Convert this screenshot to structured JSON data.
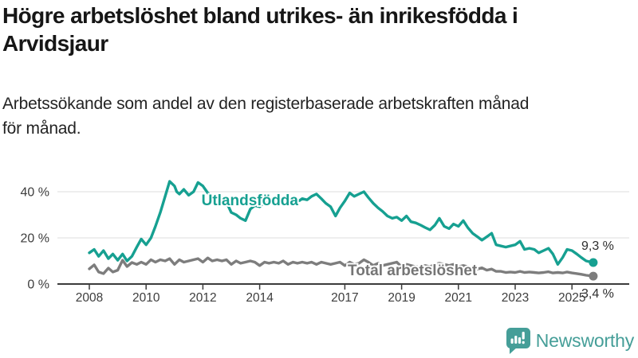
{
  "header": {
    "title_lines": [
      "Högre arbetslöshet bland utrikes- än inrikesfödda i",
      "Arvidsjaur"
    ],
    "subtitle_lines": [
      "Arbetssökande som andel av den registerbaserade arbetskraften månad",
      "för månad."
    ]
  },
  "footer": {
    "brand": "Newsworthy"
  },
  "colors": {
    "teal_line": "#16a091",
    "gray_line": "#7d7d7d",
    "gray_label": "#757575",
    "axis": "#3b3b3b",
    "grid": "#dcdcdc",
    "tick_text": "#3d3d3d",
    "end_label_text": "#2e2e2e",
    "brand_teal": "#459e98"
  },
  "chart_data": {
    "type": "line",
    "title": "Högre arbetslöshet bland utrikes- än inrikesfödda i Arvidsjaur",
    "subtitle": "Arbetssökande som andel av den registerbaserade arbetskraften månad för månad.",
    "x_unit": "year (decimal, monthly data)",
    "y_unit": "%",
    "grid": "horizontal",
    "legend_position": "inline-labels",
    "x_axis": {
      "range": [
        2007.8,
        2026.0
      ],
      "ticks": [
        2008,
        2010,
        2012,
        2014,
        2017,
        2019,
        2021,
        2023,
        2025
      ]
    },
    "y_axis": {
      "range": [
        0,
        47
      ],
      "ticks": [
        {
          "value": 0,
          "label": "0 %"
        },
        {
          "value": 20,
          "label": "20 %"
        },
        {
          "value": 40,
          "label": "40 %"
        }
      ]
    },
    "series": [
      {
        "id": "utlandsfodda",
        "name": "Utlandsfödda",
        "color": "#16a091",
        "label_color": "#16a091",
        "end_label": "9,3 %",
        "end_value": 9.3,
        "label_pos": {
          "x": 2011.95,
          "y": 34.2
        },
        "points": [
          [
            2008.0,
            13.5
          ],
          [
            2008.17,
            15
          ],
          [
            2008.33,
            12
          ],
          [
            2008.5,
            14.5
          ],
          [
            2008.67,
            11
          ],
          [
            2008.83,
            13
          ],
          [
            2009.0,
            10.3
          ],
          [
            2009.17,
            13
          ],
          [
            2009.33,
            10
          ],
          [
            2009.5,
            12
          ],
          [
            2009.67,
            16
          ],
          [
            2009.83,
            19.5
          ],
          [
            2010.0,
            17
          ],
          [
            2010.17,
            20
          ],
          [
            2010.33,
            25
          ],
          [
            2010.5,
            31
          ],
          [
            2010.67,
            38
          ],
          [
            2010.83,
            44.5
          ],
          [
            2011.0,
            42.5
          ],
          [
            2011.08,
            40
          ],
          [
            2011.17,
            39
          ],
          [
            2011.33,
            41
          ],
          [
            2011.5,
            38.5
          ],
          [
            2011.67,
            40
          ],
          [
            2011.83,
            44
          ],
          [
            2012.0,
            42.5
          ],
          [
            2012.17,
            39.5
          ],
          [
            2012.33,
            38
          ],
          [
            2012.5,
            36.5
          ],
          [
            2012.67,
            37.5
          ],
          [
            2012.83,
            35.5
          ],
          [
            2013.0,
            31
          ],
          [
            2013.17,
            30
          ],
          [
            2013.33,
            28.5
          ],
          [
            2013.5,
            27.5
          ],
          [
            2013.67,
            32.5
          ],
          [
            2013.83,
            34
          ],
          [
            2014.0,
            33.5
          ],
          [
            2014.17,
            35.5
          ],
          [
            2014.33,
            34.5
          ],
          [
            2014.5,
            36
          ],
          [
            2014.67,
            35
          ],
          [
            2014.83,
            36.5
          ],
          [
            2015.0,
            35
          ],
          [
            2015.17,
            36.5
          ],
          [
            2015.33,
            35.5
          ],
          [
            2015.5,
            37
          ],
          [
            2015.67,
            36.5
          ],
          [
            2015.83,
            38
          ],
          [
            2016.0,
            39
          ],
          [
            2016.17,
            37
          ],
          [
            2016.33,
            35
          ],
          [
            2016.5,
            33.5
          ],
          [
            2016.67,
            29.5
          ],
          [
            2016.83,
            33
          ],
          [
            2017.0,
            36
          ],
          [
            2017.17,
            39.5
          ],
          [
            2017.33,
            38
          ],
          [
            2017.5,
            39
          ],
          [
            2017.67,
            40
          ],
          [
            2017.83,
            37.5
          ],
          [
            2018.0,
            35
          ],
          [
            2018.17,
            33
          ],
          [
            2018.33,
            31.5
          ],
          [
            2018.5,
            29.5
          ],
          [
            2018.67,
            28.5
          ],
          [
            2018.83,
            29
          ],
          [
            2019.0,
            27.5
          ],
          [
            2019.17,
            29.5
          ],
          [
            2019.33,
            27
          ],
          [
            2019.5,
            26.5
          ],
          [
            2019.67,
            25.5
          ],
          [
            2019.83,
            24.5
          ],
          [
            2020.0,
            23.5
          ],
          [
            2020.17,
            25.5
          ],
          [
            2020.33,
            28.5
          ],
          [
            2020.5,
            25
          ],
          [
            2020.67,
            24
          ],
          [
            2020.83,
            26
          ],
          [
            2021.0,
            25
          ],
          [
            2021.17,
            27.5
          ],
          [
            2021.33,
            24.5
          ],
          [
            2021.5,
            22
          ],
          [
            2021.67,
            20.5
          ],
          [
            2021.83,
            19
          ],
          [
            2022.0,
            20.5
          ],
          [
            2022.17,
            22
          ],
          [
            2022.33,
            17
          ],
          [
            2022.5,
            16.5
          ],
          [
            2022.67,
            16
          ],
          [
            2022.83,
            16.5
          ],
          [
            2023.0,
            17
          ],
          [
            2023.17,
            18.5
          ],
          [
            2023.33,
            15
          ],
          [
            2023.5,
            15.5
          ],
          [
            2023.67,
            15
          ],
          [
            2023.83,
            13.5
          ],
          [
            2024.0,
            14.5
          ],
          [
            2024.17,
            15.5
          ],
          [
            2024.33,
            13
          ],
          [
            2024.5,
            8.5
          ],
          [
            2024.67,
            11.5
          ],
          [
            2024.83,
            15
          ],
          [
            2025.0,
            14.5
          ],
          [
            2025.17,
            13
          ],
          [
            2025.33,
            11.5
          ],
          [
            2025.5,
            10
          ],
          [
            2025.75,
            9.3
          ]
        ]
      },
      {
        "id": "total-arbetsloshet",
        "name": "Total arbetslöshet",
        "color": "#7d7d7d",
        "label_color": "#757575",
        "end_label": "3,4 %",
        "end_value": 3.4,
        "label_pos": {
          "x": 2017.1,
          "y": 3.8
        },
        "points": [
          [
            2008.0,
            6.6
          ],
          [
            2008.17,
            8.3
          ],
          [
            2008.33,
            5.2
          ],
          [
            2008.5,
            4.5
          ],
          [
            2008.67,
            6.9
          ],
          [
            2008.83,
            5.2
          ],
          [
            2009.0,
            6
          ],
          [
            2009.17,
            10.3
          ],
          [
            2009.33,
            7.6
          ],
          [
            2009.5,
            9.3
          ],
          [
            2009.67,
            8.5
          ],
          [
            2009.83,
            9.5
          ],
          [
            2010.0,
            8.5
          ],
          [
            2010.17,
            10.5
          ],
          [
            2010.33,
            9.5
          ],
          [
            2010.5,
            10.5
          ],
          [
            2010.67,
            10
          ],
          [
            2010.83,
            11
          ],
          [
            2011.0,
            8.5
          ],
          [
            2011.17,
            10.5
          ],
          [
            2011.33,
            9.5
          ],
          [
            2011.5,
            10
          ],
          [
            2011.67,
            10.5
          ],
          [
            2011.83,
            11
          ],
          [
            2012.0,
            9.5
          ],
          [
            2012.17,
            11.3
          ],
          [
            2012.33,
            10
          ],
          [
            2012.5,
            10.5
          ],
          [
            2012.67,
            10
          ],
          [
            2012.83,
            10.5
          ],
          [
            2013.0,
            8.5
          ],
          [
            2013.17,
            10
          ],
          [
            2013.33,
            9
          ],
          [
            2013.5,
            9.5
          ],
          [
            2013.67,
            10
          ],
          [
            2013.83,
            9.5
          ],
          [
            2014.0,
            8
          ],
          [
            2014.17,
            9.5
          ],
          [
            2014.33,
            9
          ],
          [
            2014.5,
            9.5
          ],
          [
            2014.67,
            9
          ],
          [
            2014.83,
            10
          ],
          [
            2015.0,
            8.5
          ],
          [
            2015.17,
            9.5
          ],
          [
            2015.33,
            9
          ],
          [
            2015.5,
            9.5
          ],
          [
            2015.67,
            9
          ],
          [
            2015.83,
            9.5
          ],
          [
            2016.0,
            8.5
          ],
          [
            2016.17,
            9.5
          ],
          [
            2016.33,
            9
          ],
          [
            2016.5,
            8.5
          ],
          [
            2016.67,
            9
          ],
          [
            2016.83,
            9.5
          ],
          [
            2017.0,
            8
          ],
          [
            2017.17,
            9.5
          ],
          [
            2017.33,
            8.5
          ],
          [
            2017.5,
            9
          ],
          [
            2017.67,
            10.5
          ],
          [
            2017.83,
            9.5
          ],
          [
            2018.0,
            8
          ],
          [
            2018.17,
            9
          ],
          [
            2018.33,
            8
          ],
          [
            2018.5,
            8.5
          ],
          [
            2018.67,
            9
          ],
          [
            2018.83,
            9.5
          ],
          [
            2019.0,
            7.5
          ],
          [
            2019.17,
            8.5
          ],
          [
            2019.33,
            8
          ],
          [
            2019.5,
            7.5
          ],
          [
            2019.67,
            7.5
          ],
          [
            2019.83,
            8
          ],
          [
            2020.0,
            7.5
          ],
          [
            2020.17,
            8.5
          ],
          [
            2020.33,
            9
          ],
          [
            2020.5,
            8.5
          ],
          [
            2020.67,
            8
          ],
          [
            2020.83,
            8.5
          ],
          [
            2021.0,
            7.5
          ],
          [
            2021.17,
            8
          ],
          [
            2021.33,
            7.5
          ],
          [
            2021.5,
            7
          ],
          [
            2021.67,
            6.5
          ],
          [
            2021.83,
            7
          ],
          [
            2022.0,
            6
          ],
          [
            2022.17,
            6.5
          ],
          [
            2022.33,
            5.5
          ],
          [
            2022.5,
            5.5
          ],
          [
            2022.67,
            5
          ],
          [
            2022.83,
            5.2
          ],
          [
            2023.0,
            5
          ],
          [
            2023.17,
            5.5
          ],
          [
            2023.33,
            5
          ],
          [
            2023.5,
            5.2
          ],
          [
            2023.67,
            5
          ],
          [
            2023.83,
            4.8
          ],
          [
            2024.0,
            5
          ],
          [
            2024.17,
            5.3
          ],
          [
            2024.33,
            4.8
          ],
          [
            2024.5,
            5
          ],
          [
            2024.67,
            4.8
          ],
          [
            2024.83,
            5.2
          ],
          [
            2025.0,
            4.8
          ],
          [
            2025.17,
            4.5
          ],
          [
            2025.33,
            4.2
          ],
          [
            2025.5,
            3.8
          ],
          [
            2025.75,
            3.4
          ]
        ]
      }
    ]
  }
}
